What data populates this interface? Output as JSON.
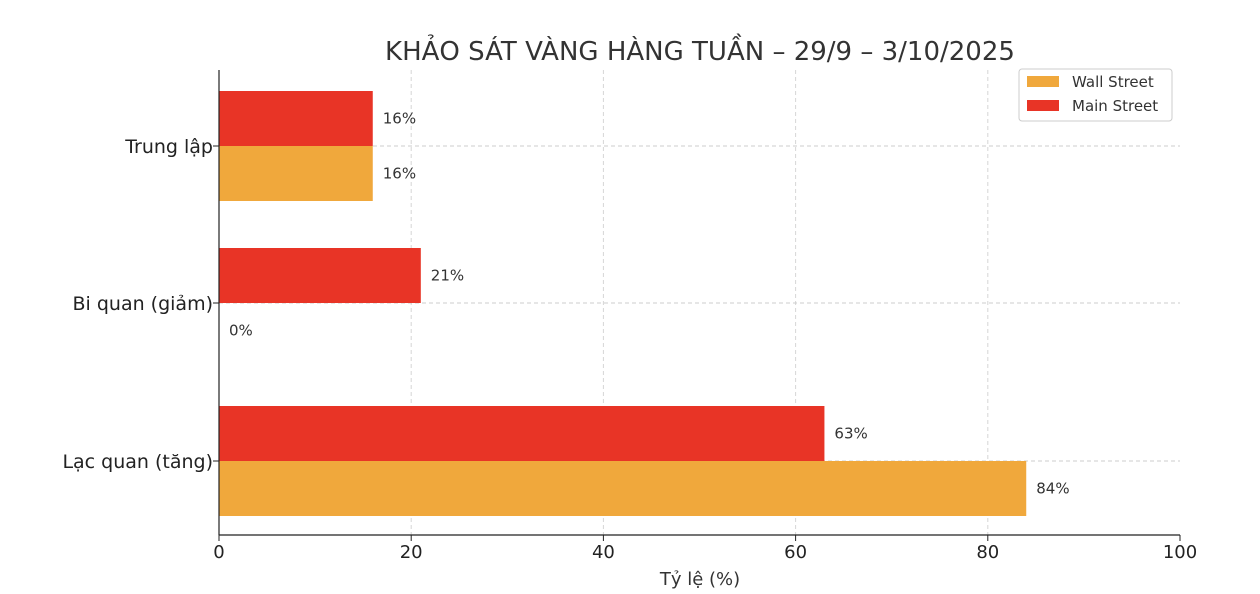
{
  "chart_data": {
    "type": "bar",
    "orientation": "horizontal",
    "title": "KHẢO SÁT VÀNG HÀNG TUẦN – 29/9 – 3/10/2025",
    "xlabel": "Tỷ lệ (%)",
    "ylabel": "",
    "xlim": [
      0,
      100
    ],
    "xticks": [
      "0",
      "20",
      "40",
      "60",
      "80",
      "100"
    ],
    "categories": [
      "Lạc quan (tăng)",
      "Bi quan (giảm)",
      "Trung lập"
    ],
    "series": [
      {
        "name": "Wall Street",
        "color": "#F0A83C",
        "values": [
          84,
          0,
          16
        ],
        "labels": [
          "84%",
          "0%",
          "16%"
        ]
      },
      {
        "name": "Main Street",
        "color": "#E83426",
        "values": [
          63,
          21,
          16
        ],
        "labels": [
          "63%",
          "21%",
          "16%"
        ]
      }
    ],
    "grid": true,
    "legend_position": "top-right"
  }
}
